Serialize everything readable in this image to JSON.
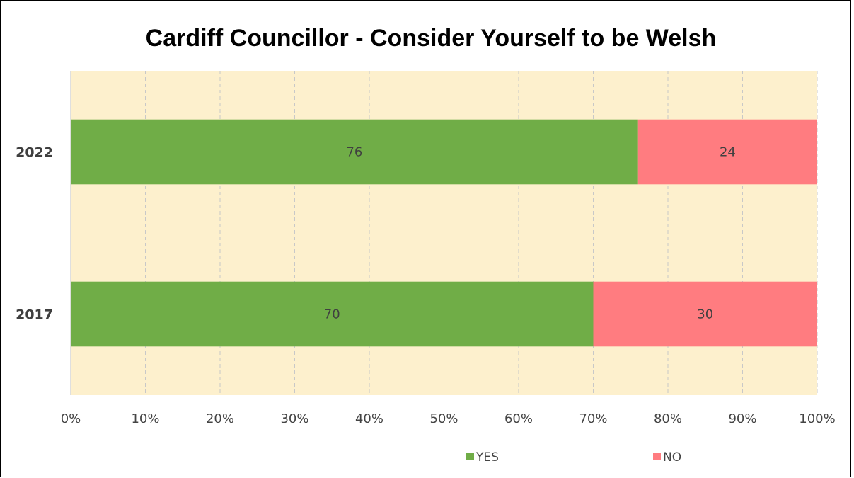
{
  "chart_data": {
    "type": "bar",
    "orientation": "horizontal",
    "stacked": true,
    "title": "Cardiff Councillor - Consider Yourself to be Welsh",
    "categories": [
      "2022",
      "2017"
    ],
    "series": [
      {
        "name": "YES",
        "values": [
          76,
          70
        ],
        "color": "#70ad47"
      },
      {
        "name": "NO",
        "values": [
          24,
          30
        ],
        "color": "#ff7c80"
      }
    ],
    "xlim": [
      0,
      100
    ],
    "x_ticks": [
      "0%",
      "10%",
      "20%",
      "30%",
      "40%",
      "50%",
      "60%",
      "70%",
      "80%",
      "90%",
      "100%"
    ],
    "xlabel": "",
    "ylabel": "",
    "grid": true,
    "legend_position": "bottom",
    "plot_background": "#fdf0cd"
  }
}
